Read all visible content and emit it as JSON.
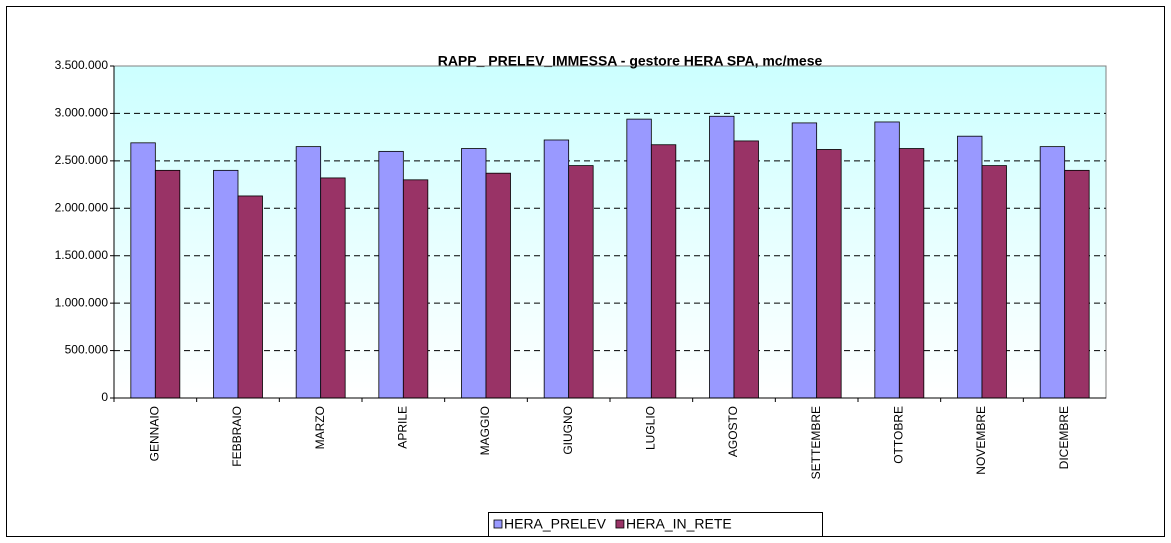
{
  "chart_data": {
    "type": "bar",
    "title": "RAPP_ PRELEV_IMMESSA - gestore HERA SPA, mc/mese",
    "categories": [
      "GENNAIO",
      "FEBBRAIO",
      "MARZO",
      "APRILE",
      "MAGGIO",
      "GIUGNO",
      "LUGLIO",
      "AGOSTO",
      "SETTEMBRE",
      "OTTOBRE",
      "NOVEMBRE",
      "DICEMBRE"
    ],
    "series": [
      {
        "name": "HERA_PRELEV",
        "color": "#9999ff",
        "values": [
          2690000,
          2400000,
          2650000,
          2600000,
          2630000,
          2720000,
          2940000,
          2970000,
          2900000,
          2910000,
          2760000,
          2650000
        ]
      },
      {
        "name": "HERA_IN_RETE",
        "color": "#993366",
        "values": [
          2400000,
          2130000,
          2320000,
          2300000,
          2370000,
          2450000,
          2670000,
          2710000,
          2620000,
          2630000,
          2450000,
          2400000
        ]
      }
    ],
    "ylim": [
      0,
      3500000
    ],
    "yticks": [
      0,
      {
        "value": 500000,
        "label": "500.000"
      },
      {
        "value": 1000000,
        "label": "1.000.000"
      },
      {
        "value": 1500000,
        "label": "1.500.000"
      },
      {
        "value": 2000000,
        "label": "2.000.000"
      },
      {
        "value": 2500000,
        "label": "2.500.000"
      },
      {
        "value": 3000000,
        "label": "3.000.000"
      },
      {
        "value": 3500000,
        "label": "3.500.000"
      }
    ],
    "grid": true,
    "legend": "bottom"
  }
}
